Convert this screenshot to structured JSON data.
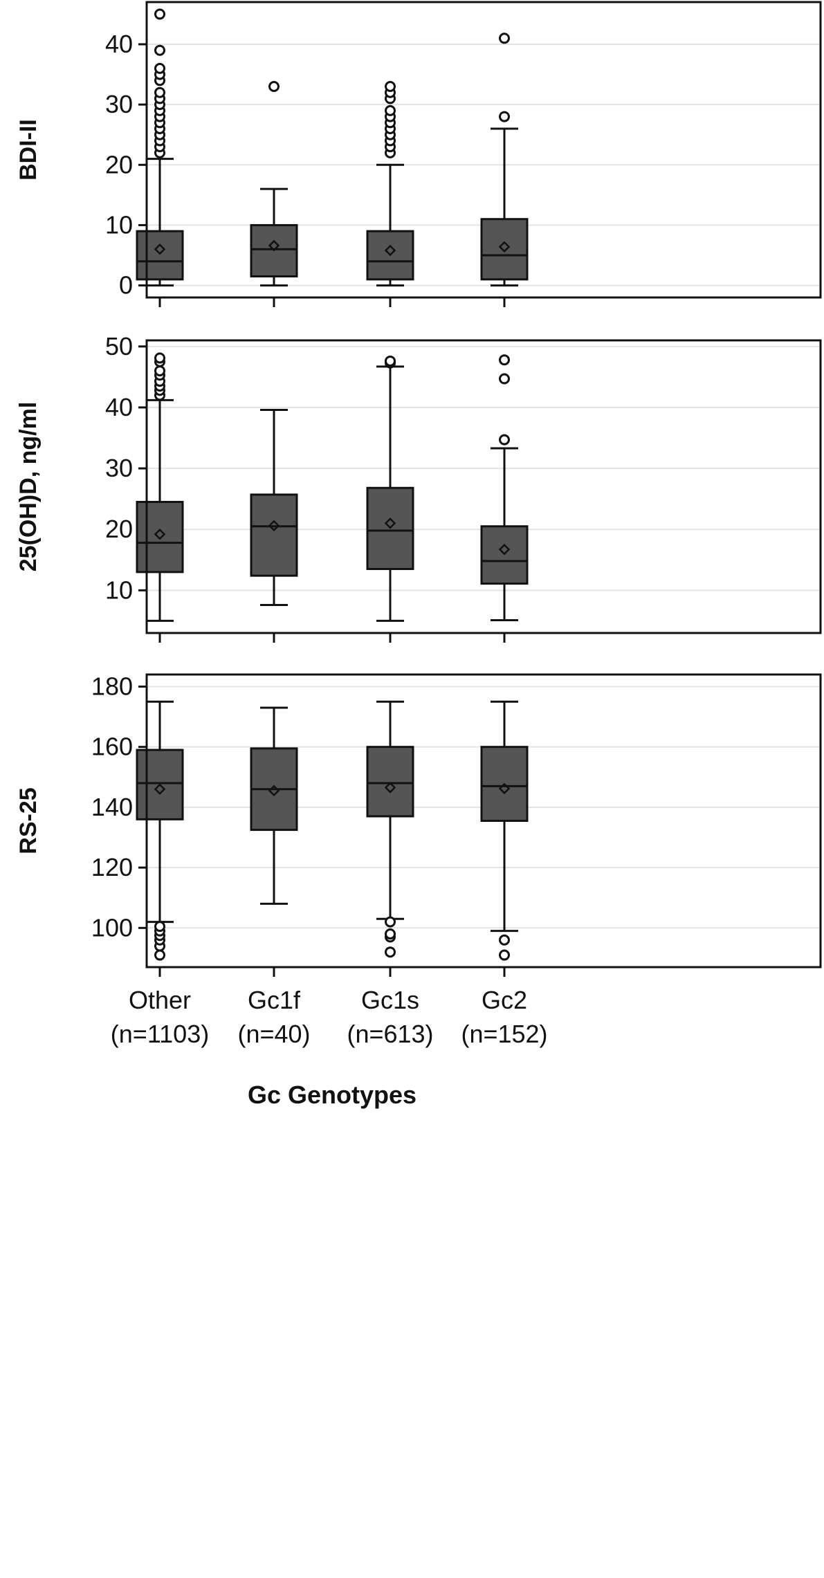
{
  "chart_data": {
    "type": "box",
    "xlabel": "Gc Genotypes",
    "categories": [
      {
        "name": "Other",
        "n": "(n=1103)"
      },
      {
        "name": "Gc1f",
        "n": "(n=40)"
      },
      {
        "name": "Gc1s",
        "n": "(n=613)"
      },
      {
        "name": "Gc2",
        "n": "(n=152)"
      }
    ],
    "panels": [
      {
        "ylabel": "BDI-II",
        "ylim": [
          -2,
          47
        ],
        "yticks": [
          0,
          10,
          20,
          30,
          40
        ],
        "grid": true,
        "boxes": [
          {
            "whisker_low": 0,
            "q1": 1,
            "median": 4,
            "q3": 9,
            "whisker_high": 21,
            "mean": 6,
            "outliers": [
              22,
              23,
              24,
              25,
              26,
              27,
              28,
              29,
              30,
              31,
              32,
              34,
              35,
              36,
              39,
              45
            ]
          },
          {
            "whisker_low": 0,
            "q1": 1.5,
            "median": 6,
            "q3": 10,
            "whisker_high": 16,
            "mean": 6.6,
            "outliers": [
              33
            ]
          },
          {
            "whisker_low": 0,
            "q1": 1,
            "median": 4,
            "q3": 9,
            "whisker_high": 20,
            "mean": 5.8,
            "outliers": [
              22,
              23,
              24,
              25,
              26,
              27,
              28,
              29,
              31,
              32,
              33
            ]
          },
          {
            "whisker_low": 0,
            "q1": 1,
            "median": 5,
            "q3": 11,
            "whisker_high": 26,
            "mean": 6.4,
            "outliers": [
              28,
              41
            ]
          }
        ]
      },
      {
        "ylabel": "25(OH)D, ng/ml",
        "ylim": [
          3,
          51
        ],
        "yticks": [
          10,
          20,
          30,
          40,
          50
        ],
        "grid": true,
        "boxes": [
          {
            "whisker_low": 5,
            "q1": 13,
            "median": 17.8,
            "q3": 24.5,
            "whisker_high": 41.2,
            "mean": 19.2,
            "outliers": [
              42,
              42.8,
              43.5,
              44.3,
              45.3,
              46,
              47.5,
              48.1
            ]
          },
          {
            "whisker_low": 7.6,
            "q1": 12.4,
            "median": 20.5,
            "q3": 25.7,
            "whisker_high": 39.6,
            "mean": 20.6,
            "outliers": []
          },
          {
            "whisker_low": 5,
            "q1": 13.5,
            "median": 19.8,
            "q3": 26.8,
            "whisker_high": 46.7,
            "mean": 21,
            "outliers": [
              47.3,
              47.6
            ]
          },
          {
            "whisker_low": 5.1,
            "q1": 11.1,
            "median": 14.8,
            "q3": 20.5,
            "whisker_high": 33.3,
            "mean": 16.7,
            "outliers": [
              34.7,
              44.7,
              47.8
            ]
          }
        ]
      },
      {
        "ylabel": "RS-25",
        "ylim": [
          87,
          184
        ],
        "yticks": [
          100,
          120,
          140,
          160,
          180
        ],
        "grid": true,
        "boxes": [
          {
            "whisker_low": 102,
            "q1": 136,
            "median": 148,
            "q3": 159,
            "whisker_high": 175,
            "mean": 146,
            "outliers": [
              91,
              94,
              96,
              97.5,
              99,
              100.5
            ]
          },
          {
            "whisker_low": 108,
            "q1": 132.5,
            "median": 146,
            "q3": 159.5,
            "whisker_high": 173,
            "mean": 145.5,
            "outliers": []
          },
          {
            "whisker_low": 103,
            "q1": 137,
            "median": 148,
            "q3": 160,
            "whisker_high": 175,
            "mean": 146.5,
            "outliers": [
              92,
              97,
              98,
              102
            ]
          },
          {
            "whisker_low": 99,
            "q1": 135.5,
            "median": 147,
            "q3": 160,
            "whisker_high": 175,
            "mean": 146.2,
            "outliers": [
              91,
              96
            ]
          }
        ]
      }
    ]
  }
}
